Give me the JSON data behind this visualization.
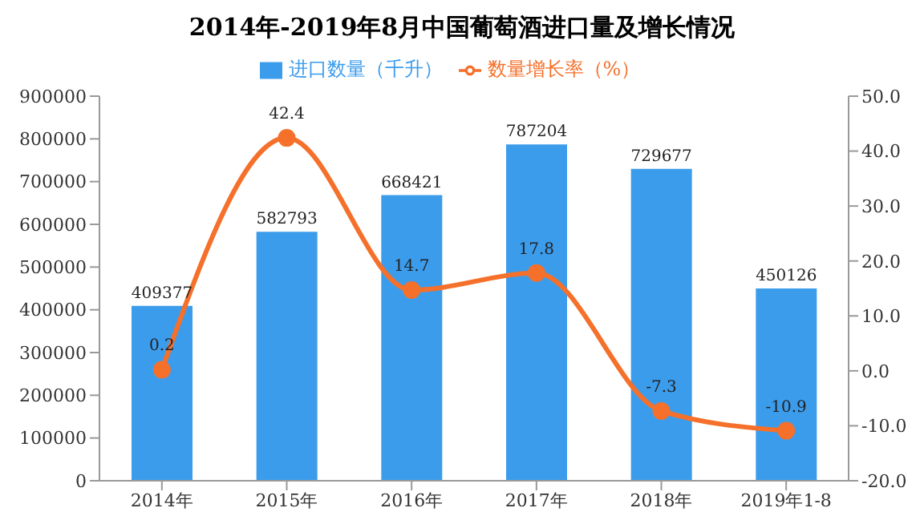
{
  "chart_data": {
    "type": "bar",
    "title": "2014年-2019年8月中国葡萄酒进口量及增长情况",
    "categories": [
      "2014年",
      "2015年",
      "2016年",
      "2017年",
      "2018年",
      "2019年1-8"
    ],
    "series": [
      {
        "name": "进口数量（千升）",
        "color": "#3c9cec",
        "values": [
          409377,
          582793,
          668421,
          787204,
          729677,
          450126
        ]
      },
      {
        "name": "数量增长率（%）",
        "type": "line",
        "axis": "y2",
        "color": "#f5702a",
        "values": [
          0.2,
          42.4,
          14.7,
          17.8,
          -7.3,
          -10.9
        ]
      }
    ],
    "ylim": [
      0,
      900000
    ],
    "yticks": [
      0,
      100000,
      200000,
      300000,
      400000,
      500000,
      600000,
      700000,
      800000,
      900000
    ],
    "y2lim": [
      -20,
      50
    ],
    "y2ticks": [
      {
        "value": -20,
        "label": "-20.0"
      },
      {
        "value": -10,
        "label": "-10.0"
      },
      {
        "value": 0,
        "label": "0.0"
      },
      {
        "value": 10,
        "label": "10.0"
      },
      {
        "value": 20,
        "label": "20.0"
      },
      {
        "value": 30,
        "label": "30.0"
      },
      {
        "value": 40,
        "label": "40.0"
      },
      {
        "value": 50,
        "label": "50.0"
      }
    ],
    "data_labels": true,
    "legend": "top",
    "marker": "circle",
    "grid": false
  }
}
